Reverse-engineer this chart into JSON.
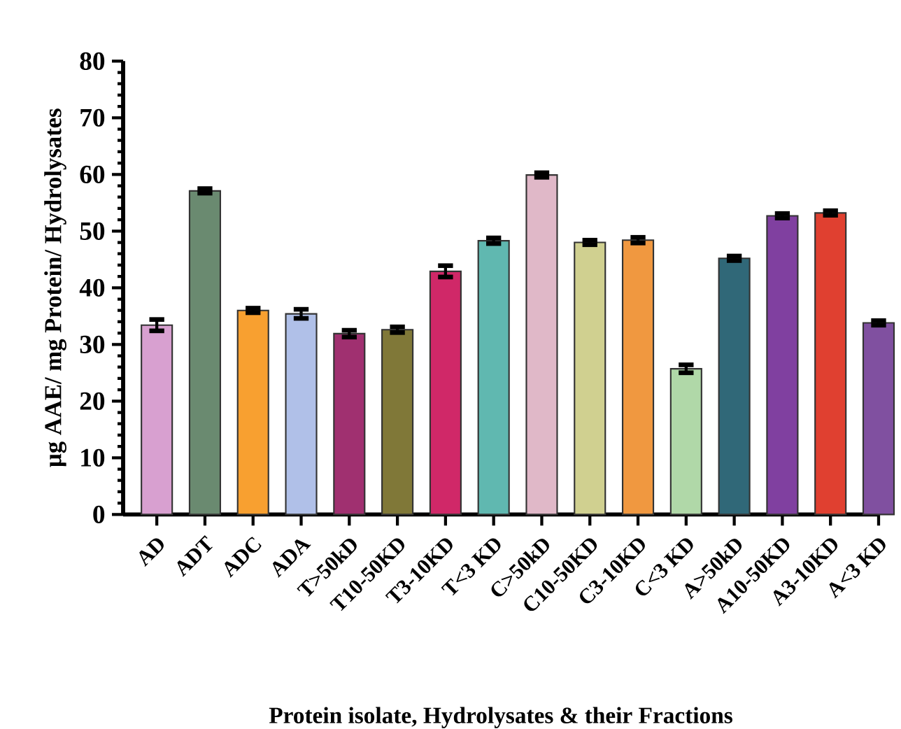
{
  "chart_data": {
    "type": "bar",
    "xlabel": "Protein isolate,  Hydrolysates & their Fractions",
    "ylabel": "µg AAE/ mg Protein/ Hydrolysates",
    "categories": [
      "AD",
      "ADT",
      "ADC",
      "ADA",
      "T>50kD",
      "T10-50KD",
      "T3-10KD",
      "T<3 KD",
      "C>50kD",
      "C10-50KD",
      "C3-10KD",
      "C<3 KD",
      "A>50kD",
      "A10-50KD",
      "A3-10KD",
      "A<3 KD"
    ],
    "values": [
      33.4,
      57.1,
      36.0,
      35.4,
      31.9,
      32.6,
      42.9,
      48.3,
      59.9,
      48.0,
      48.4,
      25.7,
      45.2,
      52.7,
      53.2,
      33.8
    ],
    "errors": [
      1.0,
      0.4,
      0.4,
      0.8,
      0.6,
      0.5,
      1.0,
      0.5,
      0.4,
      0.4,
      0.5,
      0.7,
      0.4,
      0.4,
      0.4,
      0.4
    ],
    "colors": [
      "#d8a0d0",
      "#6a8a70",
      "#f8a030",
      "#b0c0e8",
      "#a03070",
      "#807838",
      "#d02868",
      "#60b8b0",
      "#e0b8c8",
      "#d0d090",
      "#f09840",
      "#b0d8a8",
      "#306878",
      "#8040a0",
      "#e04030",
      "#8050a0"
    ],
    "ylim": [
      0,
      80
    ],
    "yticks": [
      0,
      10,
      20,
      30,
      40,
      50,
      60,
      70,
      80
    ],
    "grid": false
  }
}
